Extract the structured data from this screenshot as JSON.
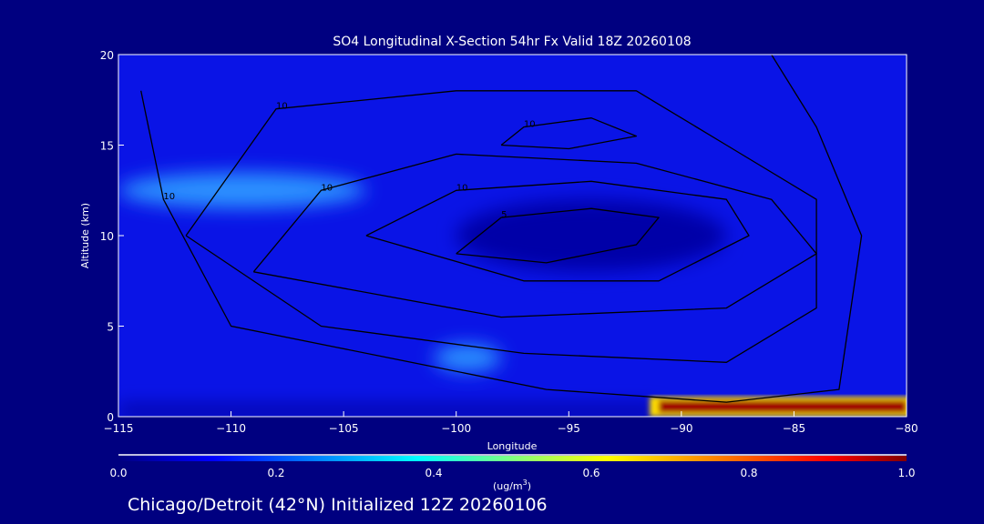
{
  "chart_data": {
    "type": "heatmap",
    "title": "SO4 Longitudinal X-Section 54hr  Fx Valid 18Z 20260108",
    "xlabel": "Longitude",
    "ylabel": "Altitude (km)",
    "xlim": [
      -115,
      -80
    ],
    "ylim": [
      0,
      20
    ],
    "xticks": [
      -115,
      -110,
      -105,
      -100,
      -95,
      -90,
      -85,
      -80
    ],
    "xtick_labels": [
      "−115",
      "−110",
      "−105",
      "−100",
      "−95",
      "−90",
      "−85",
      "−80"
    ],
    "yticks": [
      0,
      5,
      10,
      15,
      20
    ],
    "ytick_labels": [
      "0",
      "5",
      "10",
      "15",
      "20"
    ],
    "colorbar": {
      "min": 0.0,
      "max": 1.0,
      "tick_labels": [
        "0.0",
        "0.2",
        "0.4",
        "0.6",
        "0.8",
        "1.0"
      ],
      "units_label": "(ug/m",
      "units_sup": "3",
      "units_close": ")",
      "colors": [
        "#000080",
        "#0000ff",
        "#00ffff",
        "#ffff00",
        "#ff0000",
        "#800000"
      ]
    },
    "field_regions": [
      {
        "desc": "background",
        "value": 0.12
      },
      {
        "lon": [
          -115,
          -104
        ],
        "alt": [
          11.5,
          13.5
        ],
        "value": 0.3
      },
      {
        "lon": [
          -101,
          -98
        ],
        "alt": [
          2.5,
          4
        ],
        "value": 0.3
      },
      {
        "lon": [
          -100,
          -88
        ],
        "alt": [
          8,
          12
        ],
        "value": 0.06
      },
      {
        "lon": [
          -91,
          -80
        ],
        "alt": [
          0.2,
          0.9
        ],
        "value": 1.0
      }
    ],
    "contours": [
      {
        "label": "5",
        "points": [
          [
            -100,
            9
          ],
          [
            -98,
            11
          ],
          [
            -94,
            11.5
          ],
          [
            -91,
            11
          ],
          [
            -92,
            9.5
          ],
          [
            -96,
            8.5
          ],
          [
            -100,
            9
          ]
        ]
      },
      {
        "label": "10",
        "points": [
          [
            -104,
            10
          ],
          [
            -100,
            12.5
          ],
          [
            -94,
            13
          ],
          [
            -88,
            12
          ],
          [
            -87,
            10
          ],
          [
            -91,
            7.5
          ],
          [
            -97,
            7.5
          ],
          [
            -104,
            10
          ]
        ]
      },
      {
        "label": "10",
        "points": [
          [
            -109,
            8
          ],
          [
            -106,
            12.5
          ],
          [
            -100,
            14.5
          ],
          [
            -92,
            14
          ],
          [
            -86,
            12
          ],
          [
            -84,
            9
          ],
          [
            -88,
            6
          ],
          [
            -98,
            5.5
          ],
          [
            -109,
            8
          ]
        ]
      },
      {
        "label": "10",
        "points": [
          [
            -112,
            10
          ],
          [
            -108,
            17
          ],
          [
            -100,
            18
          ],
          [
            -92,
            18
          ],
          [
            -88,
            15
          ],
          [
            -84,
            12
          ],
          [
            -84,
            6
          ],
          [
            -88,
            3
          ],
          [
            -97,
            3.5
          ],
          [
            -106,
            5
          ],
          [
            -112,
            10
          ]
        ]
      },
      {
        "label": "10",
        "points": [
          [
            -114,
            18
          ],
          [
            -113,
            12
          ],
          [
            -110,
            5
          ],
          [
            -102,
            3
          ],
          [
            -96,
            1.5
          ],
          [
            -88,
            0.8
          ],
          [
            -83,
            1.5
          ],
          [
            -82,
            10
          ],
          [
            -84,
            16
          ],
          [
            -86,
            20
          ]
        ]
      },
      {
        "label": "10",
        "points": [
          [
            -98,
            15
          ],
          [
            -97,
            16
          ],
          [
            -94,
            16.5
          ],
          [
            -92,
            15.5
          ],
          [
            -95,
            14.8
          ],
          [
            -98,
            15
          ]
        ]
      }
    ]
  },
  "footer": {
    "caption": "Chicago/Detroit (42°N) Initialized 12Z 20260106"
  }
}
